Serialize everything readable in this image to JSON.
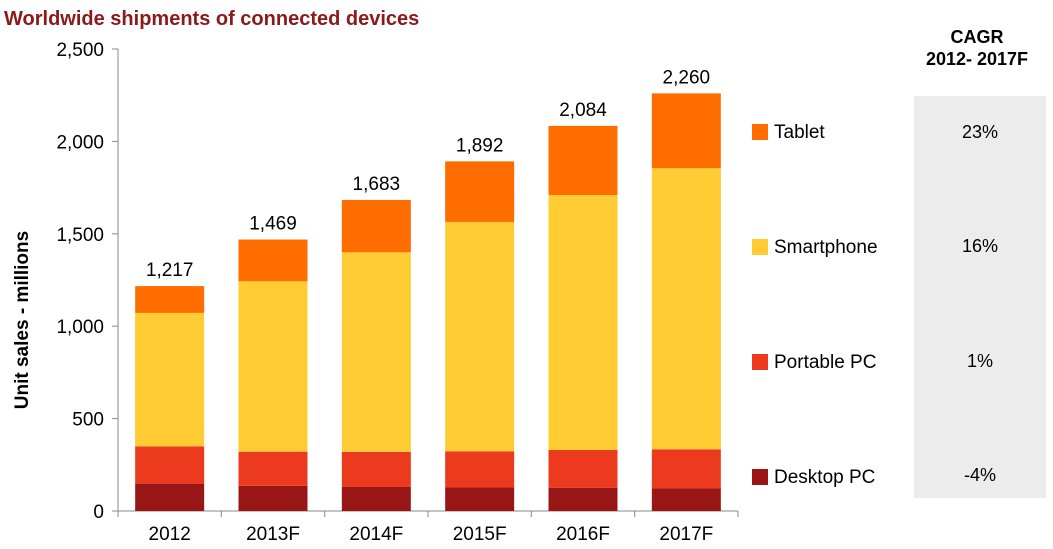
{
  "title": "Worldwide shipments of connected devices",
  "cagr": {
    "header_line1": "CAGR",
    "header_line2": "2012- 2017F",
    "values": [
      "23%",
      "16%",
      "1%",
      "-4%"
    ]
  },
  "legend": [
    {
      "label": "Tablet",
      "color": "#ff6d00"
    },
    {
      "label": "Smartphone",
      "color": "#ffcc33"
    },
    {
      "label": "Portable PC",
      "color": "#ec3a1e"
    },
    {
      "label": "Desktop PC",
      "color": "#991616"
    }
  ],
  "chart_data": {
    "type": "bar",
    "stacked": true,
    "title": "Worldwide shipments of connected devices",
    "xlabel": "",
    "ylabel": "Unit sales - millions",
    "ylim": [
      0,
      2500
    ],
    "yticks": [
      0,
      500,
      1000,
      1500,
      2000,
      2500
    ],
    "ytick_labels": [
      "0",
      "500",
      "1,000",
      "1,500",
      "2,000",
      "2,500"
    ],
    "categories": [
      "2012",
      "2013F",
      "2014F",
      "2015F",
      "2016F",
      "2017F"
    ],
    "totals_labels": [
      "1,217",
      "1,469",
      "1,683",
      "1,892",
      "2,084",
      "2,260"
    ],
    "series": [
      {
        "name": "Desktop PC",
        "color": "#991616",
        "values": [
          148,
          136,
          130,
          127,
          125,
          122
        ]
      },
      {
        "name": "Portable PC",
        "color": "#ec3a1e",
        "values": [
          202,
          185,
          190,
          196,
          205,
          212
        ]
      },
      {
        "name": "Smartphone",
        "color": "#ffcc33",
        "values": [
          722,
          922,
          1080,
          1241,
          1380,
          1521
        ]
      },
      {
        "name": "Tablet",
        "color": "#ff6d00",
        "values": [
          145,
          226,
          283,
          328,
          374,
          405
        ]
      }
    ],
    "legend_position": "right",
    "grid": false
  }
}
